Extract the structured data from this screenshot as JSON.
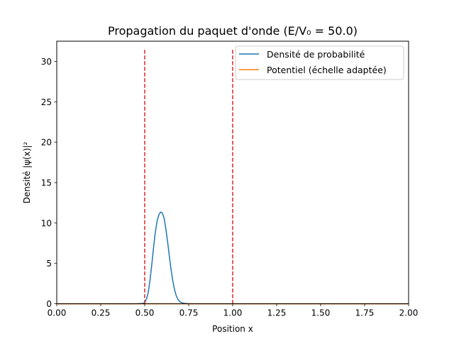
{
  "chart_data": {
    "type": "line",
    "title": "Propagation du paquet d'onde (E/V₀ = 50.0)",
    "xlabel": "Position x",
    "ylabel": "Densité |ψ(x)|²",
    "xlim": [
      0.0,
      2.0
    ],
    "ylim": [
      0.0,
      32.5
    ],
    "xticks": [
      "0.00",
      "0.25",
      "0.50",
      "0.75",
      "1.00",
      "1.25",
      "1.50",
      "1.75",
      "2.00"
    ],
    "yticks": [
      "0",
      "5",
      "10",
      "15",
      "20",
      "25",
      "30"
    ],
    "grid": false,
    "legend_position": "top-right",
    "series": [
      {
        "name": "Densité de probabilité",
        "color": "#1f77b4",
        "x": [
          0.0,
          0.45,
          0.49,
          0.5,
          0.51,
          0.52,
          0.53,
          0.54,
          0.55,
          0.56,
          0.57,
          0.58,
          0.59,
          0.6,
          0.61,
          0.62,
          0.63,
          0.64,
          0.65,
          0.66,
          0.67,
          0.68,
          0.69,
          0.7,
          0.72,
          0.75,
          1.0,
          2.0
        ],
        "y": [
          0.0,
          0.0,
          0.05,
          0.15,
          0.6,
          1.4,
          2.9,
          4.8,
          6.9,
          8.8,
          10.2,
          11.0,
          11.35,
          11.25,
          10.6,
          9.3,
          7.7,
          5.9,
          4.2,
          2.8,
          1.7,
          0.95,
          0.5,
          0.25,
          0.07,
          0.0,
          0.0,
          0.0
        ]
      },
      {
        "name": "Potentiel (échelle adaptée)",
        "color": "#ff7f0e",
        "x": [
          0.0,
          2.0
        ],
        "y": [
          0.0,
          0.0
        ]
      }
    ],
    "vertical_lines": [
      {
        "x": 0.5,
        "y_top": 31.6,
        "color": "#d62728",
        "style": "dashed"
      },
      {
        "x": 1.0,
        "y_top": 31.6,
        "color": "#d62728",
        "style": "dashed"
      }
    ]
  }
}
